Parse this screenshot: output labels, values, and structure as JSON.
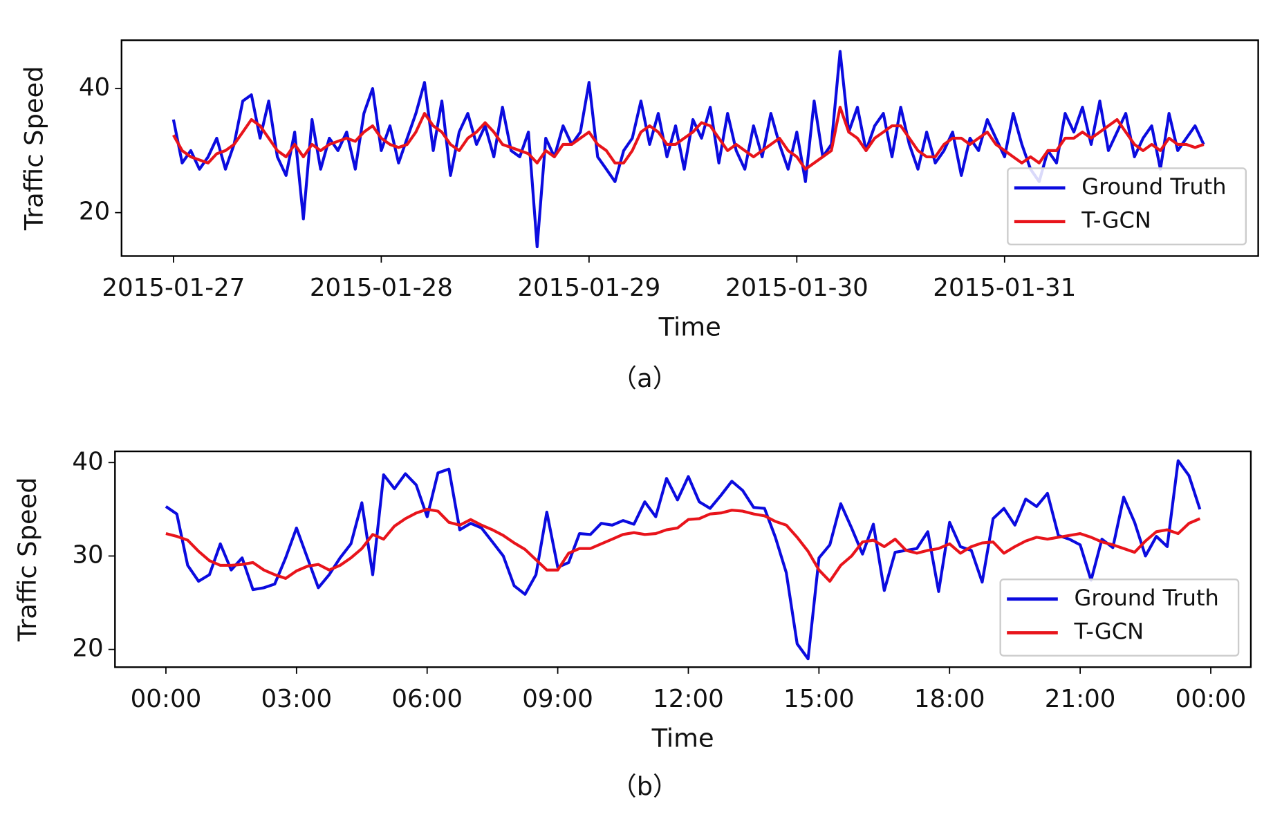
{
  "chart_data": [
    {
      "type": "line",
      "caption": "（a）",
      "xlabel": "Time",
      "ylabel": "Traffic Speed",
      "legend": "lower right",
      "xlim": [
        -6,
        125.3
      ],
      "ylim": [
        13,
        47.8
      ],
      "yticks": [
        20,
        40
      ],
      "xticks": [
        {
          "value": 0,
          "label": "2015-01-27"
        },
        {
          "value": 24,
          "label": "2015-01-28"
        },
        {
          "value": 48,
          "label": "2015-01-29"
        },
        {
          "value": 72,
          "label": "2015-01-30"
        },
        {
          "value": 96,
          "label": "2015-01-31"
        }
      ],
      "x": [
        0,
        1,
        2,
        3,
        4,
        5,
        6,
        7,
        8,
        9,
        10,
        11,
        12,
        13,
        14,
        15,
        16,
        17,
        18,
        19,
        20,
        21,
        22,
        23,
        24,
        25,
        26,
        27,
        28,
        29,
        30,
        31,
        32,
        33,
        34,
        35,
        36,
        37,
        38,
        39,
        40,
        41,
        42,
        43,
        44,
        45,
        46,
        47,
        48,
        49,
        50,
        51,
        52,
        53,
        54,
        55,
        56,
        57,
        58,
        59,
        60,
        61,
        62,
        63,
        64,
        65,
        66,
        67,
        68,
        69,
        70,
        71,
        72,
        73,
        74,
        75,
        76,
        77,
        78,
        79,
        80,
        81,
        82,
        83,
        84,
        85,
        86,
        87,
        88,
        89,
        90,
        91,
        92,
        93,
        94,
        95,
        96,
        97,
        98,
        99,
        100,
        101,
        102,
        103,
        104,
        105,
        106,
        107,
        108,
        109,
        110,
        111,
        112,
        113,
        114,
        115,
        116,
        117,
        118,
        119
      ],
      "series": [
        {
          "name": "Ground Truth",
          "color": "#0b0bdf",
          "values": [
            35,
            28,
            30,
            27,
            29,
            32,
            27,
            31,
            38,
            39,
            32,
            38,
            29,
            26,
            33,
            19,
            35,
            27,
            32,
            30,
            33,
            27,
            36,
            40,
            30,
            34,
            28,
            32,
            36,
            41,
            30,
            38,
            26,
            33,
            36,
            31,
            34,
            29,
            37,
            30,
            29,
            33,
            14.5,
            32,
            29,
            34,
            31,
            33,
            41,
            29,
            27,
            25,
            30,
            32,
            38,
            31,
            36,
            29,
            34,
            27,
            35,
            32,
            37,
            28,
            36,
            30,
            27,
            34,
            29,
            36,
            31,
            27,
            33,
            25,
            38,
            29,
            31,
            46,
            33,
            37,
            30,
            34,
            36,
            29,
            37,
            31,
            27,
            33,
            28,
            30,
            33,
            26,
            32,
            30,
            35,
            32,
            29,
            36,
            31,
            27,
            25,
            30,
            28,
            36,
            33,
            37,
            31,
            38,
            30,
            33,
            36,
            29,
            32,
            34,
            27,
            36,
            30,
            32,
            34,
            31
          ]
        },
        {
          "name": "T-GCN",
          "color": "#e8141b",
          "values": [
            32.5,
            30,
            29,
            28.5,
            28,
            29.5,
            30,
            31,
            33,
            35,
            34,
            32,
            30,
            29,
            31,
            29,
            31,
            30,
            31,
            31.5,
            32,
            31.5,
            33,
            34,
            32,
            31,
            30.5,
            31,
            33,
            36,
            34,
            33,
            31,
            30,
            32,
            33,
            34.5,
            33,
            31,
            30.5,
            30,
            29.5,
            28,
            30,
            29,
            31,
            31,
            32,
            33,
            31,
            30,
            28,
            28,
            30,
            33,
            34,
            33,
            31,
            31,
            32,
            33,
            34.5,
            34,
            32,
            30,
            31,
            30,
            29,
            30,
            31,
            32,
            30,
            29,
            27,
            28,
            29,
            30,
            37,
            33,
            32,
            30,
            32,
            33,
            34,
            34,
            32,
            30,
            29,
            29,
            31,
            32,
            32,
            31,
            32,
            33,
            31,
            30,
            29,
            28,
            29,
            28,
            30,
            30,
            32,
            32,
            33,
            32,
            33,
            34,
            35,
            33,
            31,
            30,
            31,
            30,
            32,
            31,
            31,
            30.5,
            31
          ]
        }
      ]
    },
    {
      "type": "line",
      "caption": "（b）",
      "xlabel": "Time",
      "ylabel": "Traffic Speed",
      "legend": "lower right",
      "xlim": [
        -1.17,
        24.92
      ],
      "ylim": [
        18.1,
        41.2
      ],
      "yticks": [
        20,
        30,
        40
      ],
      "xticks": [
        {
          "value": 0,
          "label": "00:00"
        },
        {
          "value": 3,
          "label": "03:00"
        },
        {
          "value": 6,
          "label": "06:00"
        },
        {
          "value": 9,
          "label": "09:00"
        },
        {
          "value": 12,
          "label": "12:00"
        },
        {
          "value": 15,
          "label": "15:00"
        },
        {
          "value": 18,
          "label": "18:00"
        },
        {
          "value": 21,
          "label": "21:00"
        },
        {
          "value": 24,
          "label": "00:00"
        }
      ],
      "x": [
        0,
        0.25,
        0.5,
        0.75,
        1,
        1.25,
        1.5,
        1.75,
        2,
        2.25,
        2.5,
        2.75,
        3,
        3.25,
        3.5,
        3.75,
        4,
        4.25,
        4.5,
        4.75,
        5,
        5.25,
        5.5,
        5.75,
        6,
        6.25,
        6.5,
        6.75,
        7,
        7.25,
        7.5,
        7.75,
        8,
        8.25,
        8.5,
        8.75,
        9,
        9.25,
        9.5,
        9.75,
        10,
        10.25,
        10.5,
        10.75,
        11,
        11.25,
        11.5,
        11.75,
        12,
        12.25,
        12.5,
        12.75,
        13,
        13.25,
        13.5,
        13.75,
        14,
        14.25,
        14.5,
        14.75,
        15,
        15.25,
        15.5,
        15.75,
        16,
        16.25,
        16.5,
        16.75,
        17,
        17.25,
        17.5,
        17.75,
        18,
        18.25,
        18.5,
        18.75,
        19,
        19.25,
        19.5,
        19.75,
        20,
        20.25,
        20.5,
        20.75,
        21,
        21.25,
        21.5,
        21.75,
        22,
        22.25,
        22.5,
        22.75,
        23,
        23.25,
        23.5,
        23.75
      ],
      "series": [
        {
          "name": "Ground Truth",
          "color": "#0b0bdf",
          "values": [
            35.3,
            34.5,
            29,
            27.3,
            28,
            31.3,
            28.5,
            29.8,
            26.4,
            26.6,
            27,
            29.8,
            33,
            29.8,
            26.6,
            28,
            29.8,
            31.3,
            35.7,
            28,
            38.7,
            37.2,
            38.8,
            37.6,
            34.2,
            38.9,
            39.3,
            32.8,
            33.5,
            33,
            31.5,
            30,
            26.8,
            25.9,
            28,
            34.7,
            28.8,
            29.3,
            32.4,
            32.3,
            33.5,
            33.3,
            33.8,
            33.4,
            35.8,
            34.2,
            38.3,
            36,
            38.5,
            35.8,
            35.1,
            36.5,
            38,
            37,
            35.2,
            35.1,
            32,
            28.2,
            20.6,
            19,
            29.8,
            31.2,
            35.6,
            33,
            30.2,
            33.4,
            26.3,
            30.4,
            30.6,
            30.8,
            32.6,
            26.2,
            33.6,
            31,
            30.6,
            27.2,
            34,
            35.1,
            33.3,
            36.1,
            35.3,
            36.7,
            32.2,
            31.8,
            31.2,
            27.4,
            31.8,
            30.9,
            36.3,
            33.6,
            30,
            32.1,
            31,
            40.2,
            38.6,
            35
          ]
        },
        {
          "name": "T-GCN",
          "color": "#e8141b",
          "values": [
            32.4,
            32.1,
            31.7,
            30.5,
            29.5,
            29,
            29,
            29.1,
            29.3,
            28.5,
            28,
            27.6,
            28.4,
            28.9,
            29.1,
            28.5,
            29,
            29.8,
            30.8,
            32.3,
            31.8,
            33.2,
            34,
            34.6,
            35,
            34.8,
            33.6,
            33.3,
            33.9,
            33.3,
            32.8,
            32.2,
            31.4,
            30.7,
            29.6,
            28.5,
            28.5,
            30.3,
            30.8,
            30.8,
            31.3,
            31.8,
            32.3,
            32.5,
            32.3,
            32.4,
            32.8,
            33,
            33.9,
            34,
            34.5,
            34.6,
            34.9,
            34.8,
            34.5,
            34.3,
            33.7,
            33.3,
            32,
            30.5,
            28.5,
            27.3,
            29,
            30,
            31.5,
            31.7,
            31,
            31.8,
            30.6,
            30.3,
            30.6,
            30.8,
            31.3,
            30.3,
            31,
            31.4,
            31.5,
            30.3,
            31,
            31.6,
            32,
            31.8,
            32,
            32.2,
            32.4,
            32,
            31.5,
            31.2,
            30.8,
            30.4,
            31.6,
            32.6,
            32.8,
            32.4,
            33.5,
            34
          ]
        }
      ]
    }
  ]
}
